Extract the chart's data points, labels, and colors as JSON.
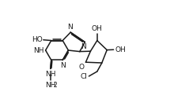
{
  "bg_color": "#ffffff",
  "line_color": "#1a1a1a",
  "lw": 1.1,
  "fs": 6.5,
  "xlim": [
    0.0,
    9.5
  ],
  "ylim": [
    0.0,
    7.0
  ]
}
